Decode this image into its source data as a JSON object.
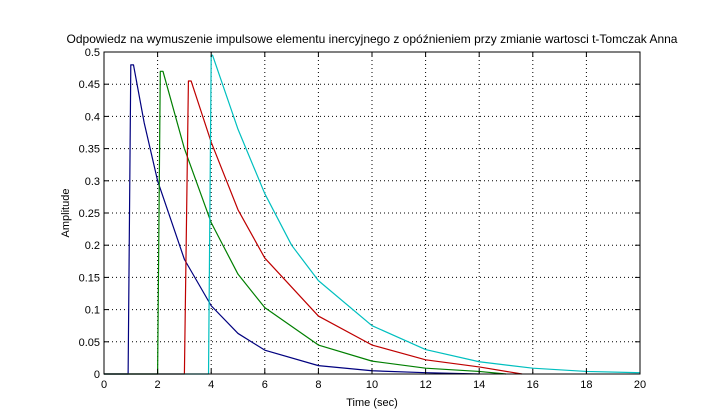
{
  "chart_data": {
    "type": "line",
    "title": "Odpowiedz na wymuszenie impulsowe elementu inercyjnego z opóźnieniem  przy zmianie wartosci t-Tomczak Anna",
    "xlabel": "Time (sec)",
    "ylabel": "Amplitude",
    "xlim": [
      0,
      20
    ],
    "ylim": [
      0,
      0.5
    ],
    "xticks": [
      "0",
      "2",
      "4",
      "6",
      "8",
      "10",
      "12",
      "14",
      "16",
      "18",
      "20"
    ],
    "yticks": [
      "0",
      "0.05",
      "0.1",
      "0.15",
      "0.2",
      "0.25",
      "0.3",
      "0.35",
      "0.4",
      "0.45",
      "0.5"
    ],
    "grid": true,
    "series": [
      {
        "color": "#00007f",
        "x": [
          0,
          0.9,
          1.0,
          1.1,
          1.5,
          2,
          3,
          4,
          5,
          6,
          8,
          10,
          12,
          14
        ],
        "y": [
          0,
          0,
          0.48,
          0.48,
          0.39,
          0.3,
          0.178,
          0.106,
          0.063,
          0.037,
          0.013,
          0.005,
          0.002,
          0
        ]
      },
      {
        "color": "#007f00",
        "x": [
          0,
          2.0,
          2.1,
          2.2,
          3,
          4,
          5,
          6,
          8,
          10,
          12,
          14,
          15
        ],
        "y": [
          0,
          0,
          0.47,
          0.47,
          0.35,
          0.235,
          0.155,
          0.103,
          0.045,
          0.02,
          0.009,
          0.004,
          0
        ]
      },
      {
        "color": "#bf0000",
        "x": [
          0,
          3.0,
          3.15,
          3.25,
          4,
          5,
          6,
          8,
          10,
          12,
          14,
          15.6
        ],
        "y": [
          0,
          0,
          0.455,
          0.455,
          0.36,
          0.255,
          0.18,
          0.09,
          0.045,
          0.022,
          0.011,
          0
        ]
      },
      {
        "color": "#00bfbf",
        "x": [
          0,
          3.9,
          4.0,
          4.05,
          5,
          6,
          7,
          8,
          10,
          12,
          14,
          16,
          18,
          20
        ],
        "y": [
          0,
          0,
          0.495,
          0.495,
          0.38,
          0.28,
          0.2,
          0.145,
          0.075,
          0.038,
          0.019,
          0.009,
          0.004,
          0.002
        ]
      }
    ]
  }
}
